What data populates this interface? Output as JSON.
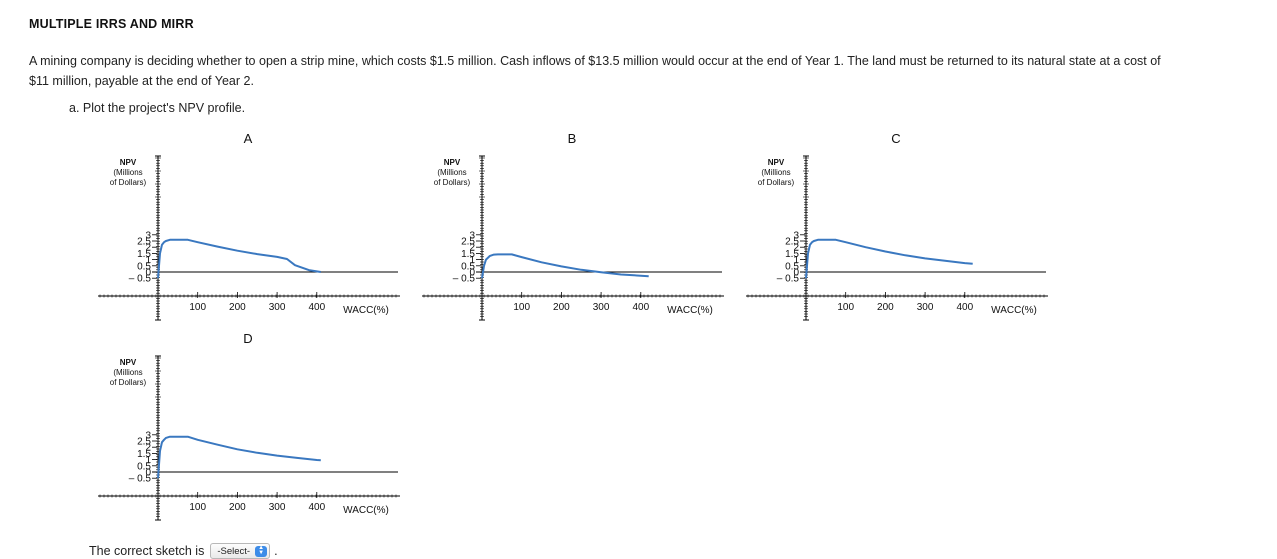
{
  "header": {
    "title": "MULTIPLE IRRS AND MIRR"
  },
  "problem": {
    "line1": "A mining company is deciding whether to open a strip mine, which costs $1.5 million. Cash inflows of $13.5 million would occur at the end of Year 1. The land must be returned to its natural state at a cost of",
    "line2": "$11 million, payable at the end of Year 2.",
    "question": "a.  Plot the project's NPV profile."
  },
  "answer": {
    "prompt": "The correct sketch is",
    "select_value": "-Select-",
    "suffix": "."
  },
  "colors": {
    "curve": "#3a78c0",
    "axis": "#000000"
  },
  "chart_data": [
    {
      "type": "line",
      "label": "A",
      "ylabel": [
        "NPV",
        "(Millions",
        "of Dollars)"
      ],
      "xlabel": "WACC(%)",
      "xticks": [
        "100",
        "200",
        "300",
        "400"
      ],
      "yticks": [
        "3",
        "2.5",
        "2",
        "1.5",
        "1",
        "0.5",
        "0",
        "– 0.5"
      ],
      "xlim": [
        0,
        400
      ],
      "ylim": [
        -0.5,
        3
      ],
      "points": [
        [
          0,
          -0.5
        ],
        [
          5,
          1.5
        ],
        [
          10,
          2.2
        ],
        [
          15,
          2.4
        ],
        [
          20,
          2.5
        ],
        [
          30,
          2.6
        ],
        [
          40,
          2.6
        ],
        [
          75,
          2.6
        ],
        [
          100,
          2.4
        ],
        [
          150,
          2.05
        ],
        [
          200,
          1.72
        ],
        [
          250,
          1.44
        ],
        [
          300,
          1.22
        ],
        [
          325,
          1.05
        ],
        [
          345,
          0.55
        ],
        [
          380,
          0.15
        ],
        [
          410,
          0.0
        ]
      ]
    },
    {
      "type": "line",
      "label": "B",
      "ylabel": [
        "NPV",
        "(Millions",
        "of Dollars)"
      ],
      "xlabel": "WACC(%)",
      "xticks": [
        "100",
        "200",
        "300",
        "400"
      ],
      "yticks": [
        "3",
        "2.5",
        "2",
        "1.5",
        "1",
        "0.5",
        "0",
        "– 0.5"
      ],
      "xlim": [
        0,
        400
      ],
      "ylim": [
        -0.5,
        3
      ],
      "points": [
        [
          0,
          -0.5
        ],
        [
          5,
          0.5
        ],
        [
          10,
          1.0
        ],
        [
          20,
          1.3
        ],
        [
          30,
          1.4
        ],
        [
          40,
          1.42
        ],
        [
          75,
          1.42
        ],
        [
          100,
          1.2
        ],
        [
          150,
          0.78
        ],
        [
          200,
          0.45
        ],
        [
          250,
          0.18
        ],
        [
          300,
          -0.02
        ],
        [
          350,
          -0.2
        ],
        [
          400,
          -0.3
        ],
        [
          420,
          -0.34
        ]
      ]
    },
    {
      "type": "line",
      "label": "C",
      "ylabel": [
        "NPV",
        "(Millions",
        "of Dollars)"
      ],
      "xlabel": "WACC(%)",
      "xticks": [
        "100",
        "200",
        "300",
        "400"
      ],
      "yticks": [
        "3",
        "2.5",
        "2",
        "1.5",
        "1",
        "0.5",
        "0",
        "– 0.5"
      ],
      "xlim": [
        0,
        400
      ],
      "ylim": [
        -0.5,
        3
      ],
      "points": [
        [
          0,
          -0.5
        ],
        [
          5,
          1.5
        ],
        [
          10,
          2.2
        ],
        [
          15,
          2.4
        ],
        [
          20,
          2.5
        ],
        [
          30,
          2.6
        ],
        [
          40,
          2.6
        ],
        [
          75,
          2.6
        ],
        [
          100,
          2.4
        ],
        [
          150,
          2.0
        ],
        [
          200,
          1.65
        ],
        [
          250,
          1.35
        ],
        [
          300,
          1.1
        ],
        [
          350,
          0.9
        ],
        [
          400,
          0.72
        ],
        [
          420,
          0.66
        ]
      ]
    },
    {
      "type": "line",
      "label": "D",
      "ylabel": [
        "NPV",
        "(Millions",
        "of Dollars)"
      ],
      "xlabel": "WACC(%)",
      "xticks": [
        "100",
        "200",
        "300",
        "400"
      ],
      "yticks": [
        "3",
        "2.5",
        "2",
        "1.5",
        "1",
        "0.5",
        "0",
        "– 0.5"
      ],
      "xlim": [
        0,
        400
      ],
      "ylim": [
        -0.5,
        3
      ],
      "points": [
        [
          0,
          -0.5
        ],
        [
          5,
          1.7
        ],
        [
          10,
          2.4
        ],
        [
          15,
          2.6
        ],
        [
          20,
          2.75
        ],
        [
          30,
          2.85
        ],
        [
          40,
          2.85
        ],
        [
          75,
          2.85
        ],
        [
          100,
          2.6
        ],
        [
          150,
          2.2
        ],
        [
          200,
          1.83
        ],
        [
          250,
          1.55
        ],
        [
          300,
          1.32
        ],
        [
          350,
          1.14
        ],
        [
          400,
          0.97
        ],
        [
          410,
          0.94
        ]
      ]
    }
  ]
}
